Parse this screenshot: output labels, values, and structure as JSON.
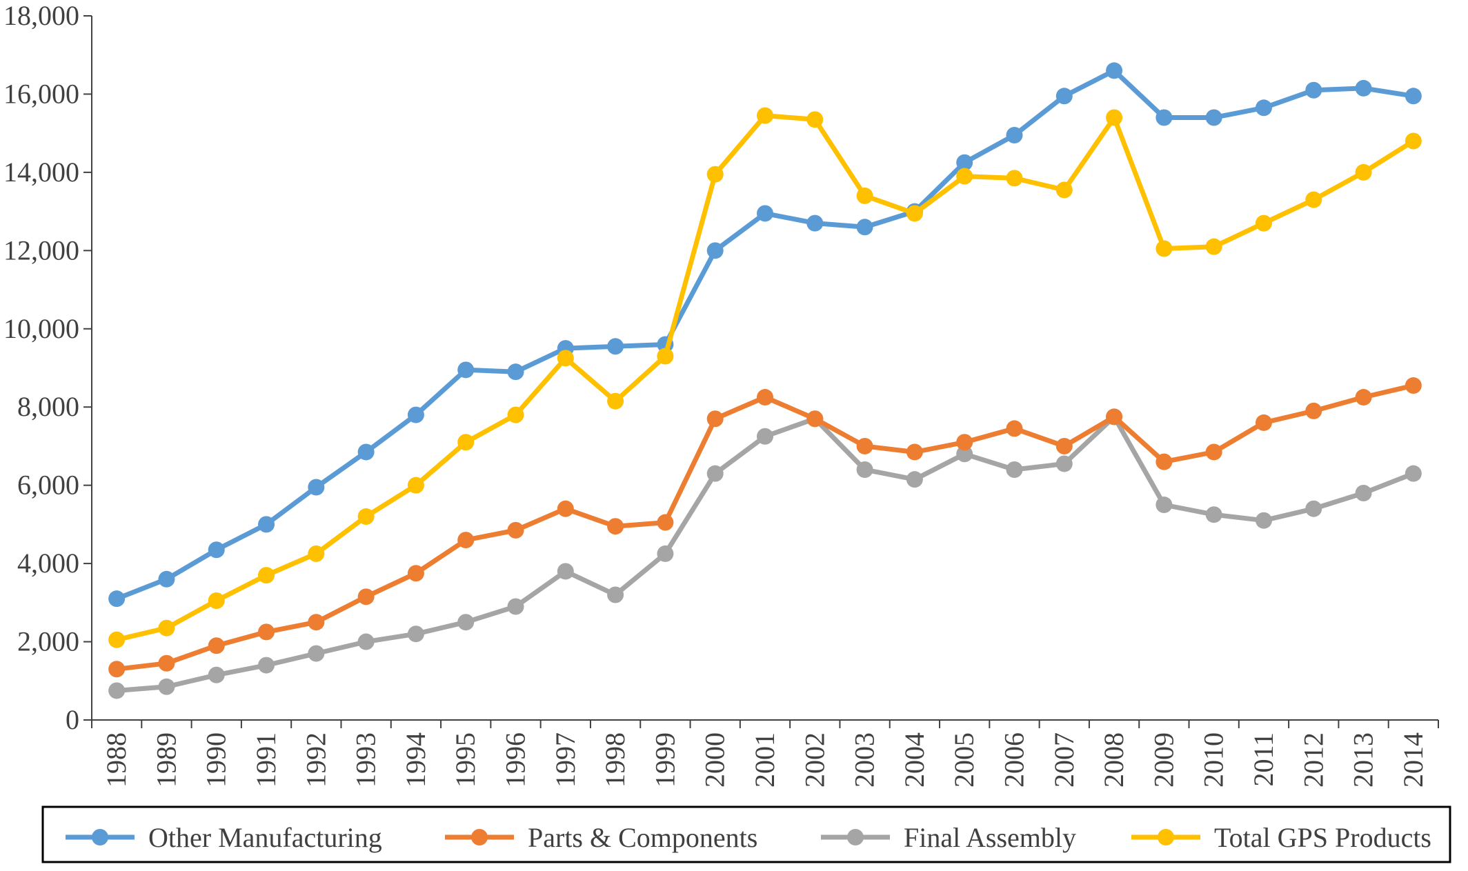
{
  "chart_data": {
    "type": "line",
    "title": "",
    "xlabel": "",
    "ylabel": "",
    "categories": [
      "1988",
      "1989",
      "1990",
      "1991",
      "1992",
      "1993",
      "1994",
      "1995",
      "1996",
      "1997",
      "1998",
      "1999",
      "2000",
      "2001",
      "2002",
      "2003",
      "2004",
      "2005",
      "2006",
      "2007",
      "2008",
      "2009",
      "2010",
      "2011",
      "2012",
      "2013",
      "2014"
    ],
    "ylim": [
      0,
      18000
    ],
    "yticks": [
      0,
      2000,
      4000,
      6000,
      8000,
      10000,
      12000,
      14000,
      16000,
      18000
    ],
    "ytick_labels": [
      "0",
      "2,000",
      "4,000",
      "6,000",
      "8,000",
      "10,000",
      "12,000",
      "14,000",
      "16,000",
      "18,000"
    ],
    "grid": false,
    "legend_position": "bottom",
    "series": [
      {
        "name": "Other Manufacturing",
        "color": "#5B9BD5",
        "values": [
          3100,
          3600,
          4350,
          5000,
          5950,
          6850,
          7800,
          8950,
          8900,
          9500,
          9550,
          9600,
          12000,
          12950,
          12700,
          12600,
          13000,
          14250,
          14950,
          15950,
          16600,
          15400,
          15400,
          15650,
          16100,
          16150,
          15950
        ]
      },
      {
        "name": "Parts & Components",
        "color": "#ED7D31",
        "values": [
          1300,
          1450,
          1900,
          2250,
          2500,
          3150,
          3750,
          4600,
          4850,
          5400,
          4950,
          5050,
          7700,
          8250,
          7700,
          7000,
          6850,
          7100,
          7450,
          7000,
          7750,
          6600,
          6850,
          7600,
          7900,
          8250,
          8550
        ]
      },
      {
        "name": "Final Assembly",
        "color": "#A5A5A5",
        "values": [
          750,
          850,
          1150,
          1400,
          1700,
          2000,
          2200,
          2500,
          2900,
          3800,
          3200,
          4250,
          6300,
          7250,
          7700,
          6400,
          6150,
          6800,
          6400,
          6550,
          7750,
          5500,
          5250,
          5100,
          5400,
          5800,
          6300
        ]
      },
      {
        "name": "Total GPS Products",
        "color": "#FFC000",
        "values": [
          2050,
          2350,
          3050,
          3700,
          4250,
          5200,
          6000,
          7100,
          7800,
          9250,
          8150,
          9300,
          13950,
          15450,
          15350,
          13400,
          12950,
          13900,
          13850,
          13550,
          15400,
          12050,
          12100,
          12700,
          13300,
          14000,
          14800
        ]
      }
    ]
  }
}
